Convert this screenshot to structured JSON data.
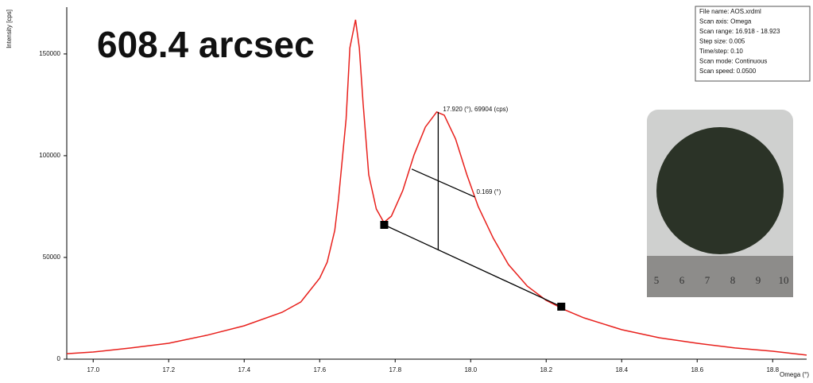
{
  "chart_data": {
    "type": "line",
    "title": "608.4 arcsec",
    "x_label": "Omega (°)",
    "y_label": "Intensity [cps]",
    "color": "#e8201c",
    "x": [
      16.93,
      17.0,
      17.1,
      17.2,
      17.3,
      17.4,
      17.5,
      17.55,
      17.6,
      17.62,
      17.64,
      17.65,
      17.67,
      17.68,
      17.695,
      17.705,
      17.715,
      17.73,
      17.75,
      17.77,
      17.79,
      17.82,
      17.85,
      17.88,
      17.91,
      17.93,
      17.96,
      17.99,
      18.02,
      18.06,
      18.1,
      18.15,
      18.2,
      18.25,
      18.3,
      18.4,
      18.5,
      18.6,
      18.7,
      18.8,
      18.89
    ],
    "values": [
      2700,
      3500,
      5500,
      7800,
      11700,
      16400,
      23000,
      28100,
      39800,
      47700,
      63300,
      78900,
      118000,
      153000,
      166800,
      153000,
      125800,
      90600,
      73800,
      67200,
      70300,
      82800,
      100400,
      114100,
      121500,
      119900,
      108200,
      90600,
      75000,
      59400,
      46500,
      35900,
      28900,
      24200,
      20300,
      14500,
      10500,
      7800,
      5500,
      3900,
      2000
    ],
    "xlim": [
      16.93,
      18.89
    ],
    "ylim": [
      0,
      173000
    ],
    "xticks": [
      {
        "value": 17.0,
        "label": "17.0"
      },
      {
        "value": 17.2,
        "label": "17.2"
      },
      {
        "value": 17.4,
        "label": "17.4"
      },
      {
        "value": 17.6,
        "label": "17.6"
      },
      {
        "value": 17.8,
        "label": "17.8"
      },
      {
        "value": 18.0,
        "label": "18.0"
      },
      {
        "value": 18.2,
        "label": "18.2"
      },
      {
        "value": 18.4,
        "label": "18.4"
      },
      {
        "value": 18.6,
        "label": "18.6"
      },
      {
        "value": 18.8,
        "label": "18.8"
      }
    ],
    "yticks": [
      0,
      50000,
      100000,
      150000
    ],
    "annotations": {
      "peak": {
        "text": "17.920 (°), 69904 (cps)",
        "x": 17.914,
        "y": [
          121500,
          53700
        ]
      },
      "fwhm": {
        "text": "0.169 (°)",
        "x": [
          17.844,
          18.011
        ],
        "y": [
          93400,
          79700
        ]
      },
      "baseline": {
        "x": [
          17.771,
          18.24
        ],
        "y": [
          66000,
          25800
        ]
      }
    },
    "info": [
      "File name:   AOS.xrdml",
      "Scan axis:   Omega",
      "Scan range:  16.918 - 18.923",
      "Step size:     0.005",
      "Time/step:     0.10",
      "Scan mode:  Continuous",
      "Scan speed:   0.0500"
    ],
    "ruler": [
      "5",
      "6",
      "7",
      "8",
      "9",
      "10"
    ]
  }
}
